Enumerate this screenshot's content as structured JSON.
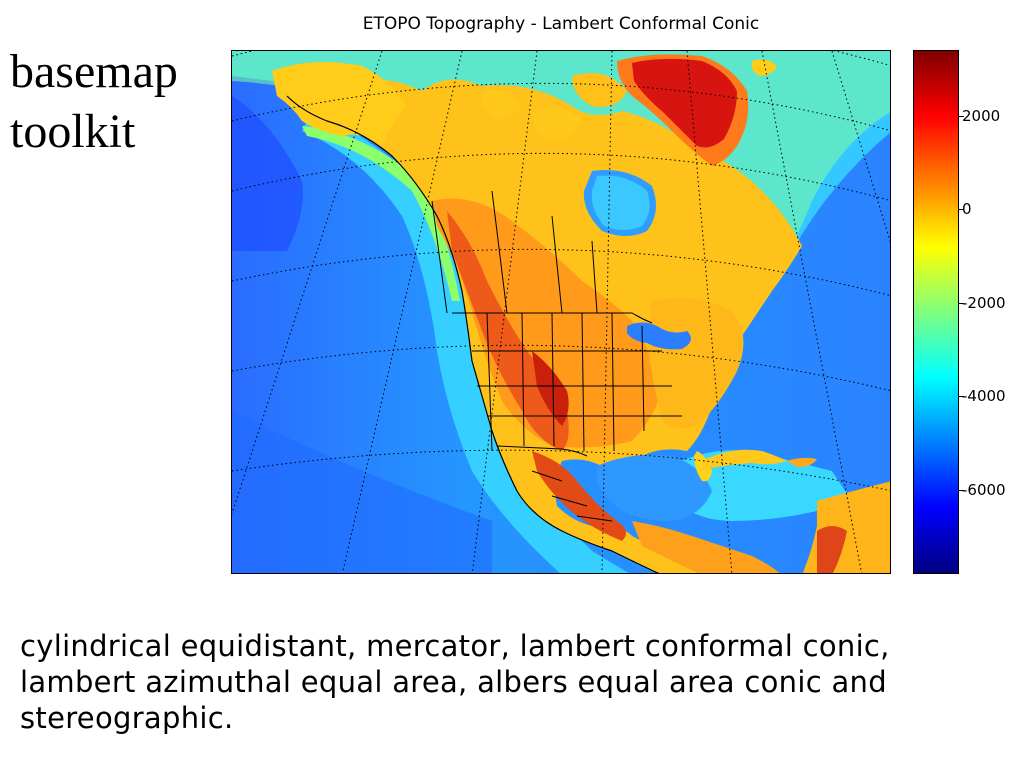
{
  "slide": {
    "title_line1": "basemap",
    "title_line2": "toolkit",
    "caption": "cylindrical equidistant, mercator, lambert conformal conic, lambert azimuthal equal area, albers equal area conic and stereographic."
  },
  "figure": {
    "title": "ETOPO Topography - Lambert Conformal Conic",
    "colorbar": {
      "colors": [
        "#00007f",
        "#0000ff",
        "#007fff",
        "#00ffff",
        "#7fff7f",
        "#ffff00",
        "#ff7f00",
        "#ff0000",
        "#7f0000"
      ],
      "range": [
        -7800,
        3400
      ],
      "ticks": [
        {
          "value": 2000,
          "label": "2000"
        },
        {
          "value": 0,
          "label": "0"
        },
        {
          "value": -2000,
          "label": "-2000"
        },
        {
          "value": -4000,
          "label": "-4000"
        },
        {
          "value": -6000,
          "label": "-6000"
        }
      ]
    },
    "colors": {
      "ocean_deep": "#1e5cff",
      "ocean": "#2a8cff",
      "ocean_shelf": "#33c6ff",
      "coast_shelf": "#9eff62",
      "lowland": "#ffd200",
      "upland": "#ffa21a",
      "mountain": "#f4531a",
      "peak": "#c81a0a",
      "greenland_ice": "#d40d0d",
      "border": "#000000"
    }
  }
}
